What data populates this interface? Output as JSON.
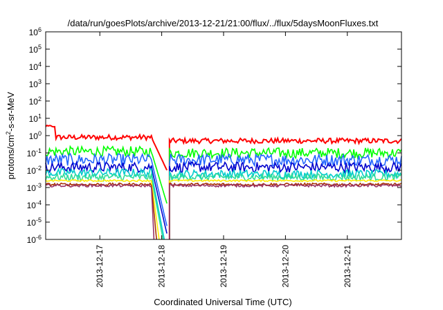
{
  "chart_data": {
    "type": "line",
    "title": "/data/run/goesPlots/archive/2013-12-21/21:00/flux/../flux/5daysMoonFluxes.txt",
    "xlabel": "Coordinated Universal Time (UTC)",
    "ylabel": "protons/cm2-s-sr-MeV",
    "y_scale": "log",
    "ylim": [
      1e-06,
      1000000.0
    ],
    "xlim": [
      "2013-12-16T03:00",
      "2013-12-21T21:00"
    ],
    "grid": false,
    "legend": "none",
    "x_ticks": [
      "2013-12-17",
      "2013-12-18",
      "2013-12-19",
      "2013-12-20",
      "2013-12-21"
    ],
    "y_ticks": [
      {
        "base": "10",
        "exp": "-6"
      },
      {
        "base": "10",
        "exp": "-5"
      },
      {
        "base": "10",
        "exp": "-4"
      },
      {
        "base": "10",
        "exp": "-3"
      },
      {
        "base": "10",
        "exp": "-2"
      },
      {
        "base": "10",
        "exp": "-1"
      },
      {
        "base": "10",
        "exp": "0"
      },
      {
        "base": "10",
        "exp": "1"
      },
      {
        "base": "10",
        "exp": "2"
      },
      {
        "base": "10",
        "exp": "3"
      },
      {
        "base": "10",
        "exp": "4"
      },
      {
        "base": "10",
        "exp": "5"
      },
      {
        "base": "10",
        "exp": "6"
      }
    ],
    "data_gap": [
      "2013-12-17T20:00",
      "2013-12-18T03:00"
    ],
    "series": [
      {
        "color": "#ff0000",
        "level_before": 0.8,
        "level_after": 0.5,
        "noise": 0.15,
        "drop_to": 0.01,
        "drop_at": "2013-12-18T02:00",
        "start_peak": 3.5
      },
      {
        "color": "#00ff00",
        "level_before": 0.12,
        "level_after": 0.1,
        "noise": 0.3,
        "drop_to": 0.00012,
        "drop_at": "2013-12-18T02:00"
      },
      {
        "color": "#2266ff",
        "level_before": 0.04,
        "level_after": 0.04,
        "noise": 0.35,
        "drop_to": 6e-06,
        "drop_at": "2013-12-18T02:00"
      },
      {
        "color": "#0000cc",
        "level_before": 0.015,
        "level_after": 0.015,
        "noise": 0.3,
        "drop_to": 2.2e-06,
        "drop_at": "2013-12-18T02:00"
      },
      {
        "color": "#00cccc",
        "level_before": 0.007,
        "level_after": 0.006,
        "noise": 0.25,
        "drop_to": 1e-06,
        "drop_at": "2013-12-18T01:00"
      },
      {
        "color": "#33dd99",
        "level_before": 0.004,
        "level_after": 0.004,
        "noise": 0.2,
        "drop_to": 1e-06,
        "drop_at": "2013-12-18T00:30"
      },
      {
        "color": "#ffee00",
        "level_before": 0.0025,
        "level_after": 0.0025,
        "noise": 0.05,
        "drop_to": 1e-06,
        "drop_at": "2013-12-17T23:00"
      },
      {
        "color": "#aa3300",
        "level_before": 0.0015,
        "level_after": 0.0015,
        "noise": 0.08,
        "drop_to": 1e-06,
        "drop_at": "2013-12-17T22:00"
      },
      {
        "color": "#993366",
        "level_before": 0.0013,
        "level_after": 0.0013,
        "noise": 0.08,
        "drop_to": 1e-06,
        "drop_at": "2013-12-17T21:00"
      }
    ]
  }
}
